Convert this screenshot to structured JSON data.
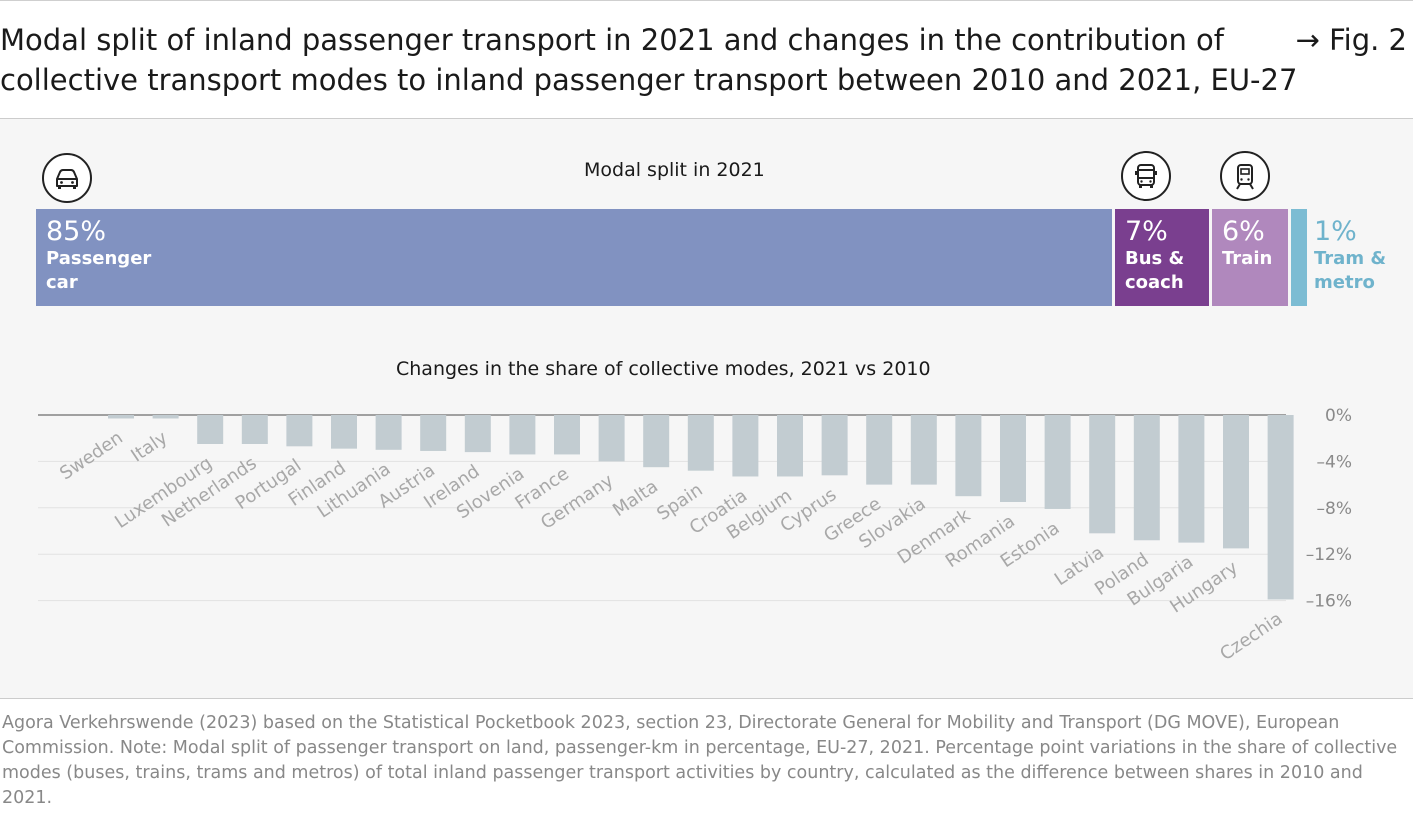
{
  "title": {
    "line1": "Modal split of inland passenger transport in 2021 and changes in the contribution of",
    "line2": "collective transport modes to inland passenger transport between 2010 and 2021, EU-27",
    "fig_ref": "→ Fig. 2"
  },
  "modal_split_title": "Modal split in 2021",
  "changes_title": "Changes in the share of collective modes, 2021 vs 2010",
  "icons": [
    "car-icon",
    "bus-icon",
    "train-icon"
  ],
  "chart_data": [
    {
      "type": "bar",
      "orientation": "stacked-horizontal",
      "title": "Modal split in 2021",
      "categories": [
        "Passenger car",
        "Bus & coach",
        "Train",
        "Tram & metro"
      ],
      "values": [
        85,
        7,
        6,
        1
      ],
      "labels": [
        {
          "pct": "85%",
          "name": "Passenger",
          "name2": "car"
        },
        {
          "pct": "7%",
          "name": "Bus &",
          "name2": "coach"
        },
        {
          "pct": "6%",
          "name": "Train",
          "name2": ""
        },
        {
          "pct": "1%",
          "name": "Tram &",
          "name2": "metro"
        }
      ],
      "colors": [
        "#8192c1",
        "#7a3f8f",
        "#b088bd",
        "#7cbcd3"
      ]
    },
    {
      "type": "bar",
      "title": "Changes in the share of collective modes, 2021 vs 2010",
      "categories": [
        "Sweden",
        "Italy",
        "Luxembourg",
        "Netherlands",
        "Portugal",
        "Finland",
        "Lithuania",
        "Austria",
        "Ireland",
        "Slovenia",
        "France",
        "Germany",
        "Malta",
        "Spain",
        "Croatia",
        "Belgium",
        "Cyprus",
        "Greece",
        "Slovakia",
        "Denmark",
        "Romania",
        "Estonia",
        "Latvia",
        "Poland",
        "Bulgaria",
        "Hungary",
        "Czechia"
      ],
      "values": [
        -0.3,
        -0.3,
        -2.5,
        -2.5,
        -2.7,
        -2.9,
        -3.0,
        -3.1,
        -3.2,
        -3.4,
        -3.4,
        -4.0,
        -4.5,
        -4.8,
        -5.3,
        -5.3,
        -5.2,
        -6.0,
        -6.0,
        -7.0,
        -7.5,
        -8.1,
        -10.2,
        -10.8,
        -11.0,
        -11.5,
        -15.9
      ],
      "ylim": [
        -16,
        0
      ],
      "yticks": [
        "0%",
        "–4%",
        "–8%",
        "–12%",
        "–16%"
      ],
      "ytick_values": [
        0,
        -4,
        -8,
        -12,
        -16
      ],
      "grid": true,
      "bar_color": "#c2ccd1"
    }
  ],
  "source": "Agora Verkehrswende (2023) based on the Statistical Pocketbook 2023, section 23, Directorate General for Mobility and Transport (DG MOVE), European Commission. Note: Modal split of passenger transport on land, passenger-km in percentage, EU-27, 2021. Percentage point variations in the share of collective modes (buses, trains, trams and metros) of total inland passenger transport activities by country, calculated as the difference between shares in 2010 and 2021."
}
